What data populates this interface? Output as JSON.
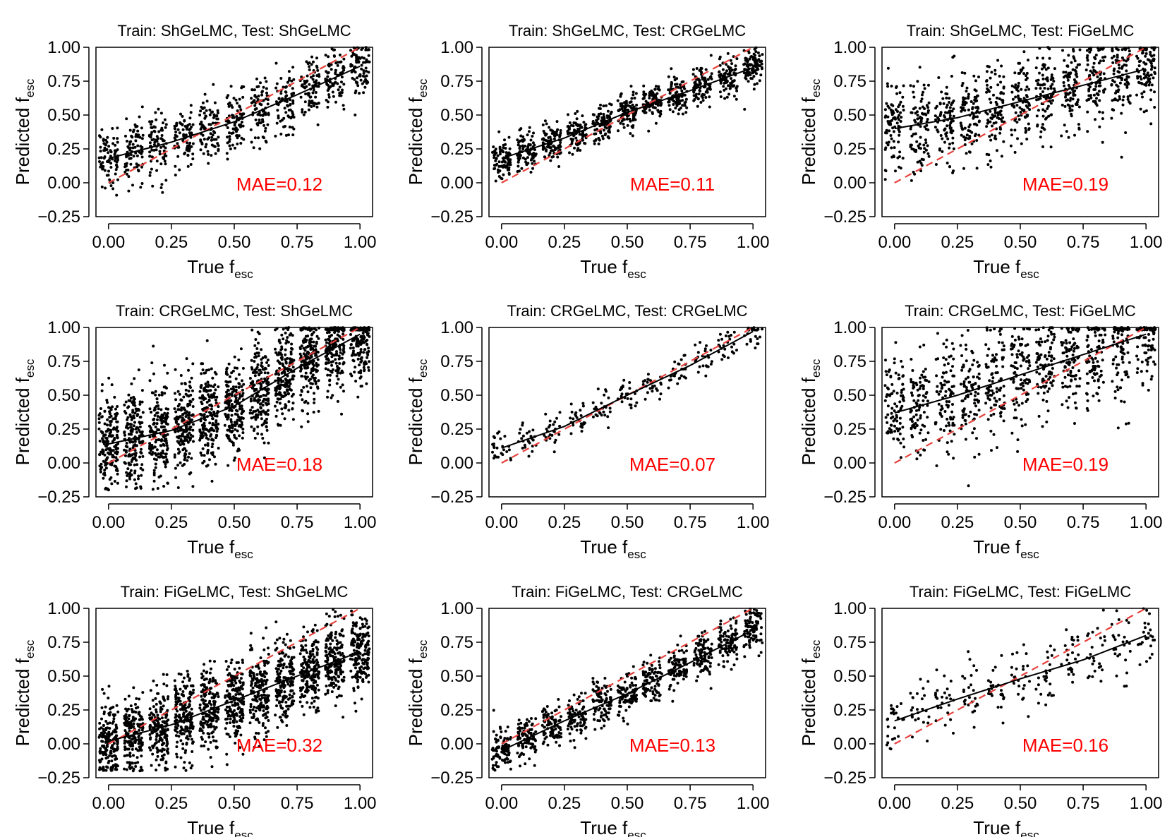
{
  "figure": {
    "xlabel_main": "True f",
    "xlabel_sub": "esc",
    "ylabel_main": "Predicted f",
    "ylabel_sub": "esc"
  },
  "colors": {
    "points": "#000000",
    "trend": "#000000",
    "identity": "#e8413c",
    "mae_text": "#ff0000"
  },
  "chart_data": [
    {
      "type": "scatter",
      "title": "Train: ShGeLMC, Test: ShGeLMC",
      "mae": "MAE=0.12",
      "xlim": [
        -0.05,
        1.05
      ],
      "ylim": [
        -0.25,
        1.0
      ],
      "xticks": [
        "0.00",
        "0.25",
        "0.50",
        "0.75",
        "1.00"
      ],
      "yticks": [
        "−0.25",
        "0.00",
        "0.25",
        "0.50",
        "0.75",
        "1.00"
      ],
      "bins": [
        0.0,
        0.1,
        0.2,
        0.3,
        0.4,
        0.5,
        0.6,
        0.7,
        0.8,
        0.9,
        1.0
      ],
      "n_per_bin": 80,
      "scatter_sd": 0.12,
      "trend": [
        [
          0.0,
          0.18
        ],
        [
          0.25,
          0.3
        ],
        [
          0.5,
          0.45
        ],
        [
          0.75,
          0.65
        ],
        [
          1.0,
          0.86
        ]
      ]
    },
    {
      "type": "scatter",
      "title": "Train: ShGeLMC, Test: CRGeLMC",
      "mae": "MAE=0.11",
      "xlim": [
        -0.05,
        1.05
      ],
      "ylim": [
        -0.25,
        1.0
      ],
      "xticks": [
        "0.00",
        "0.25",
        "0.50",
        "0.75",
        "1.00"
      ],
      "yticks": [
        "−0.25",
        "0.00",
        "0.25",
        "0.50",
        "0.75",
        "1.00"
      ],
      "bins": [
        0.0,
        0.1,
        0.2,
        0.3,
        0.4,
        0.5,
        0.6,
        0.7,
        0.8,
        0.9,
        1.0
      ],
      "n_per_bin": 90,
      "scatter_sd": 0.07,
      "trend": [
        [
          0.0,
          0.18
        ],
        [
          0.25,
          0.33
        ],
        [
          0.5,
          0.52
        ],
        [
          0.75,
          0.68
        ],
        [
          1.0,
          0.85
        ]
      ]
    },
    {
      "type": "scatter",
      "title": "Train: ShGeLMC, Test: FiGeLMC",
      "mae": "MAE=0.19",
      "xlim": [
        -0.05,
        1.05
      ],
      "ylim": [
        -0.25,
        1.0
      ],
      "xticks": [
        "0.00",
        "0.25",
        "0.50",
        "0.75",
        "1.00"
      ],
      "yticks": [
        "−0.25",
        "0.00",
        "0.25",
        "0.50",
        "0.75",
        "1.00"
      ],
      "bins": [
        0.0,
        0.1,
        0.2,
        0.3,
        0.4,
        0.5,
        0.6,
        0.7,
        0.8,
        0.9,
        1.0
      ],
      "n_per_bin": 90,
      "scatter_sd": 0.17,
      "trend": [
        [
          0.0,
          0.4
        ],
        [
          0.25,
          0.48
        ],
        [
          0.5,
          0.6
        ],
        [
          0.75,
          0.72
        ],
        [
          1.0,
          0.84
        ]
      ]
    },
    {
      "type": "scatter",
      "title": "Train: CRGeLMC, Test: ShGeLMC",
      "mae": "MAE=0.18",
      "xlim": [
        -0.05,
        1.05
      ],
      "ylim": [
        -0.25,
        1.0
      ],
      "xticks": [
        "0.00",
        "0.25",
        "0.50",
        "0.75",
        "1.00"
      ],
      "yticks": [
        "−0.25",
        "0.00",
        "0.25",
        "0.50",
        "0.75",
        "1.00"
      ],
      "bins": [
        0.0,
        0.1,
        0.2,
        0.3,
        0.4,
        0.5,
        0.6,
        0.7,
        0.8,
        0.9,
        1.0
      ],
      "n_per_bin": 180,
      "scatter_sd": 0.18,
      "trend": [
        [
          0.0,
          0.14
        ],
        [
          0.25,
          0.24
        ],
        [
          0.5,
          0.42
        ],
        [
          0.75,
          0.7
        ],
        [
          1.0,
          0.95
        ]
      ]
    },
    {
      "type": "scatter",
      "title": "Train: CRGeLMC, Test: CRGeLMC",
      "mae": "MAE=0.07",
      "xlim": [
        -0.05,
        1.05
      ],
      "ylim": [
        -0.25,
        1.0
      ],
      "xticks": [
        "0.00",
        "0.25",
        "0.50",
        "0.75",
        "1.00"
      ],
      "yticks": [
        "−0.25",
        "0.00",
        "0.25",
        "0.50",
        "0.75",
        "1.00"
      ],
      "bins": [
        0.0,
        0.1,
        0.2,
        0.3,
        0.4,
        0.5,
        0.6,
        0.7,
        0.8,
        0.9,
        1.0
      ],
      "n_per_bin": 25,
      "scatter_sd": 0.06,
      "trend": [
        [
          0.0,
          0.11
        ],
        [
          0.25,
          0.27
        ],
        [
          0.5,
          0.5
        ],
        [
          0.75,
          0.72
        ],
        [
          1.0,
          0.97
        ]
      ]
    },
    {
      "type": "scatter",
      "title": "Train: CRGeLMC, Test: FiGeLMC",
      "mae": "MAE=0.19",
      "xlim": [
        -0.05,
        1.05
      ],
      "ylim": [
        -0.25,
        1.0
      ],
      "xticks": [
        "0.00",
        "0.25",
        "0.50",
        "0.75",
        "1.00"
      ],
      "yticks": [
        "−0.25",
        "0.00",
        "0.25",
        "0.50",
        "0.75",
        "1.00"
      ],
      "bins": [
        0.0,
        0.1,
        0.2,
        0.3,
        0.4,
        0.5,
        0.6,
        0.7,
        0.8,
        0.9,
        1.0
      ],
      "n_per_bin": 90,
      "scatter_sd": 0.2,
      "trend": [
        [
          0.0,
          0.37
        ],
        [
          0.25,
          0.5
        ],
        [
          0.5,
          0.65
        ],
        [
          0.75,
          0.8
        ],
        [
          1.0,
          0.95
        ]
      ]
    },
    {
      "type": "scatter",
      "title": "Train: FiGeLMC, Test: ShGeLMC",
      "mae": "MAE=0.32",
      "xlim": [
        -0.05,
        1.05
      ],
      "ylim": [
        -0.25,
        1.0
      ],
      "xticks": [
        "0.00",
        "0.25",
        "0.50",
        "0.75",
        "1.00"
      ],
      "yticks": [
        "−0.25",
        "0.00",
        "0.25",
        "0.50",
        "0.75",
        "1.00"
      ],
      "bins": [
        0.0,
        0.1,
        0.2,
        0.3,
        0.4,
        0.5,
        0.6,
        0.7,
        0.8,
        0.9,
        1.0
      ],
      "n_per_bin": 180,
      "scatter_sd": 0.15,
      "trend": [
        [
          0.0,
          0.02
        ],
        [
          0.25,
          0.14
        ],
        [
          0.5,
          0.32
        ],
        [
          0.75,
          0.5
        ],
        [
          1.0,
          0.68
        ]
      ]
    },
    {
      "type": "scatter",
      "title": "Train: FiGeLMC, Test: CRGeLMC",
      "mae": "MAE=0.13",
      "xlim": [
        -0.05,
        1.05
      ],
      "ylim": [
        -0.25,
        1.0
      ],
      "xticks": [
        "0.00",
        "0.25",
        "0.50",
        "0.75",
        "1.00"
      ],
      "yticks": [
        "−0.25",
        "0.00",
        "0.25",
        "0.50",
        "0.75",
        "1.00"
      ],
      "bins": [
        0.0,
        0.1,
        0.2,
        0.3,
        0.4,
        0.5,
        0.6,
        0.7,
        0.8,
        0.9,
        1.0
      ],
      "n_per_bin": 90,
      "scatter_sd": 0.08,
      "trend": [
        [
          0.0,
          -0.05
        ],
        [
          0.25,
          0.17
        ],
        [
          0.5,
          0.37
        ],
        [
          0.75,
          0.6
        ],
        [
          1.0,
          0.84
        ]
      ]
    },
    {
      "type": "scatter",
      "title": "Train: FiGeLMC, Test: FiGeLMC",
      "mae": "MAE=0.16",
      "xlim": [
        -0.05,
        1.05
      ],
      "ylim": [
        -0.25,
        1.0
      ],
      "xticks": [
        "0.00",
        "0.25",
        "0.50",
        "0.75",
        "1.00"
      ],
      "yticks": [
        "−0.25",
        "0.00",
        "0.25",
        "0.50",
        "0.75",
        "1.00"
      ],
      "bins": [
        0.0,
        0.1,
        0.2,
        0.3,
        0.4,
        0.5,
        0.6,
        0.7,
        0.8,
        0.9,
        1.0
      ],
      "n_per_bin": 25,
      "scatter_sd": 0.13,
      "trend": [
        [
          0.0,
          0.17
        ],
        [
          0.25,
          0.33
        ],
        [
          0.5,
          0.48
        ],
        [
          0.75,
          0.62
        ],
        [
          1.0,
          0.8
        ]
      ]
    }
  ]
}
